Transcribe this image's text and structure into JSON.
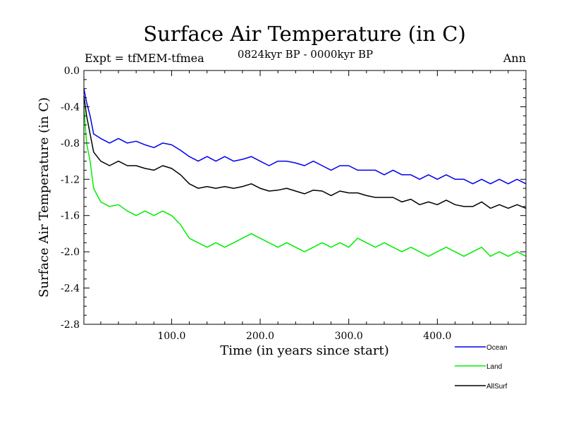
{
  "chart_data": {
    "type": "line",
    "title": "Surface Air Temperature (in C)",
    "subtitle": "0824kyr BP - 0000kyr BP",
    "experiment_label": "Expt = tfMEM-tfmea",
    "season_label": "Ann",
    "xlabel": "Time (in years since start)",
    "ylabel": "Surface Air Temperature (in C)",
    "xlim": [
      1,
      500
    ],
    "ylim": [
      -2.8,
      0.0
    ],
    "x_ticks": [
      100,
      200,
      300,
      400
    ],
    "x_tick_labels": [
      "100.0",
      "200.0",
      "300.0",
      "400.0"
    ],
    "y_ticks": [
      0.0,
      -0.4,
      -0.8,
      -1.2,
      -1.6,
      -2.0,
      -2.4,
      -2.8
    ],
    "y_tick_labels": [
      "0.0",
      "-0.4",
      "-0.8",
      "-1.2",
      "-1.6",
      "-2.0",
      "-2.4",
      "-2.8"
    ],
    "grid": false,
    "legend_position": "bottom-right, below plot",
    "series": [
      {
        "name": "Ocean",
        "color": "#0000ee",
        "x": [
          1,
          4,
          8,
          12,
          20,
          30,
          40,
          50,
          60,
          70,
          80,
          90,
          100,
          110,
          120,
          130,
          140,
          150,
          160,
          170,
          180,
          190,
          200,
          210,
          220,
          230,
          240,
          250,
          260,
          270,
          280,
          290,
          300,
          310,
          320,
          330,
          340,
          350,
          360,
          370,
          380,
          390,
          400,
          410,
          420,
          430,
          440,
          450,
          460,
          470,
          480,
          490,
          500
        ],
        "values": [
          -0.2,
          -0.35,
          -0.5,
          -0.7,
          -0.75,
          -0.8,
          -0.75,
          -0.8,
          -0.78,
          -0.82,
          -0.85,
          -0.8,
          -0.82,
          -0.88,
          -0.95,
          -1.0,
          -0.95,
          -1.0,
          -0.95,
          -1.0,
          -0.98,
          -0.95,
          -1.0,
          -1.05,
          -1.0,
          -1.0,
          -1.02,
          -1.05,
          -1.0,
          -1.05,
          -1.1,
          -1.05,
          -1.05,
          -1.1,
          -1.1,
          -1.1,
          -1.15,
          -1.1,
          -1.15,
          -1.15,
          -1.2,
          -1.15,
          -1.2,
          -1.15,
          -1.2,
          -1.2,
          -1.25,
          -1.2,
          -1.25,
          -1.2,
          -1.25,
          -1.2,
          -1.25
        ]
      },
      {
        "name": "Land",
        "color": "#00ee00",
        "x": [
          1,
          4,
          8,
          12,
          20,
          30,
          40,
          50,
          60,
          70,
          80,
          90,
          100,
          110,
          120,
          130,
          140,
          150,
          160,
          170,
          180,
          190,
          200,
          210,
          220,
          230,
          240,
          250,
          260,
          270,
          280,
          290,
          300,
          310,
          320,
          330,
          340,
          350,
          360,
          370,
          380,
          390,
          400,
          410,
          420,
          430,
          440,
          450,
          460,
          470,
          480,
          490,
          500
        ],
        "values": [
          -0.4,
          -0.8,
          -1.0,
          -1.3,
          -1.45,
          -1.5,
          -1.48,
          -1.55,
          -1.6,
          -1.55,
          -1.6,
          -1.55,
          -1.6,
          -1.7,
          -1.85,
          -1.9,
          -1.95,
          -1.9,
          -1.95,
          -1.9,
          -1.85,
          -1.8,
          -1.85,
          -1.9,
          -1.95,
          -1.9,
          -1.95,
          -2.0,
          -1.95,
          -1.9,
          -1.95,
          -1.9,
          -1.95,
          -1.85,
          -1.9,
          -1.95,
          -1.9,
          -1.95,
          -2.0,
          -1.95,
          -2.0,
          -2.05,
          -2.0,
          -1.95,
          -2.0,
          -2.05,
          -2.0,
          -1.95,
          -2.05,
          -2.0,
          -2.05,
          -2.0,
          -2.05
        ]
      },
      {
        "name": "AllSurf",
        "color": "#000000",
        "x": [
          1,
          4,
          8,
          12,
          20,
          30,
          40,
          50,
          60,
          70,
          80,
          90,
          100,
          110,
          120,
          130,
          140,
          150,
          160,
          170,
          180,
          190,
          200,
          210,
          220,
          230,
          240,
          250,
          260,
          270,
          280,
          290,
          300,
          310,
          320,
          330,
          340,
          350,
          360,
          370,
          380,
          390,
          400,
          410,
          420,
          430,
          440,
          450,
          460,
          470,
          480,
          490,
          500
        ],
        "values": [
          -0.28,
          -0.5,
          -0.7,
          -0.9,
          -1.0,
          -1.05,
          -1.0,
          -1.05,
          -1.05,
          -1.08,
          -1.1,
          -1.05,
          -1.08,
          -1.15,
          -1.25,
          -1.3,
          -1.28,
          -1.3,
          -1.28,
          -1.3,
          -1.28,
          -1.25,
          -1.3,
          -1.33,
          -1.32,
          -1.3,
          -1.33,
          -1.36,
          -1.32,
          -1.33,
          -1.38,
          -1.33,
          -1.35,
          -1.35,
          -1.38,
          -1.4,
          -1.4,
          -1.4,
          -1.45,
          -1.42,
          -1.48,
          -1.45,
          -1.48,
          -1.43,
          -1.48,
          -1.5,
          -1.5,
          -1.45,
          -1.52,
          -1.48,
          -1.52,
          -1.48,
          -1.52
        ]
      }
    ]
  }
}
